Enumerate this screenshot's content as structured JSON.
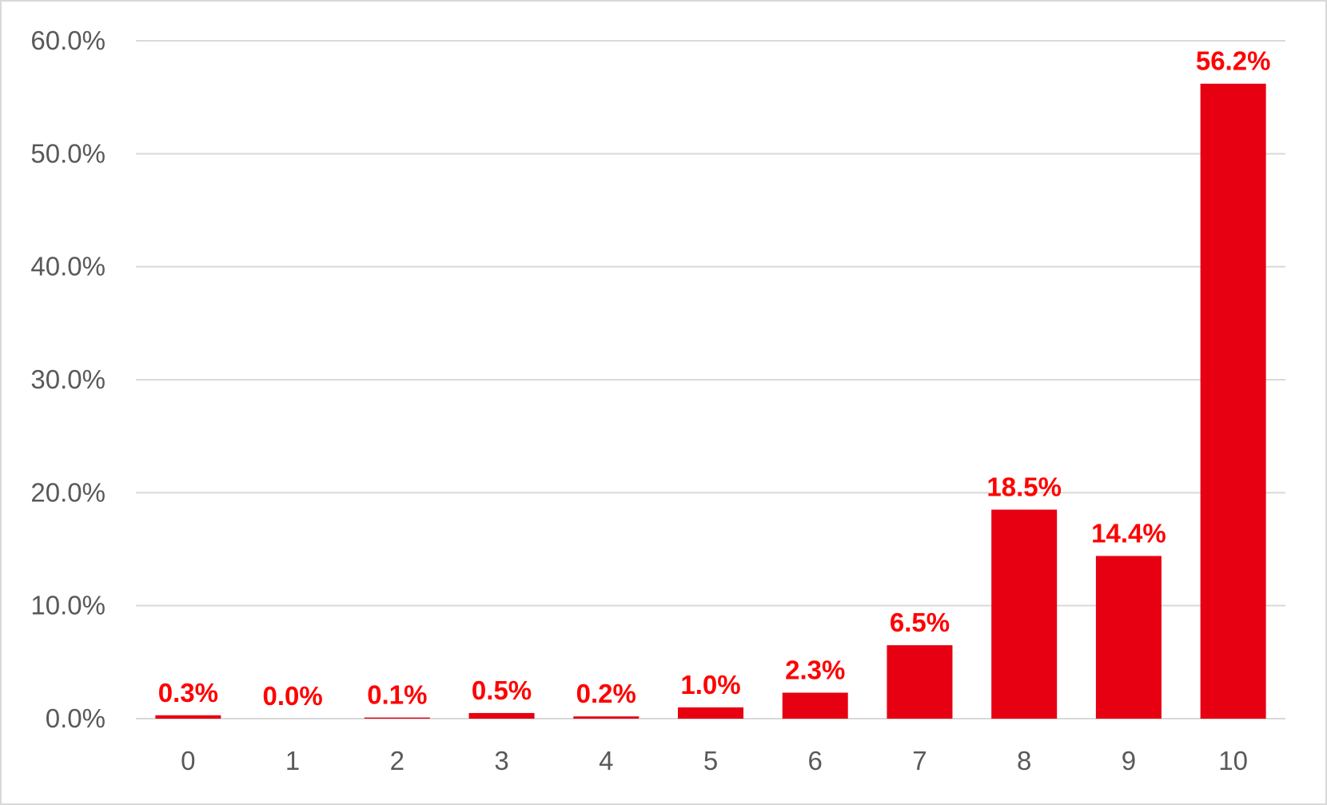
{
  "chart_data": {
    "type": "bar",
    "categories": [
      "0",
      "1",
      "2",
      "3",
      "4",
      "5",
      "6",
      "7",
      "8",
      "9",
      "10"
    ],
    "values": [
      0.3,
      0.0,
      0.1,
      0.5,
      0.2,
      1.0,
      2.3,
      6.5,
      18.5,
      14.4,
      56.2
    ],
    "data_labels": [
      "0.3%",
      "0.0%",
      "0.1%",
      "0.5%",
      "0.2%",
      "1.0%",
      "2.3%",
      "6.5%",
      "18.5%",
      "14.4%",
      "56.2%"
    ],
    "y_ticks": [
      "0.0%",
      "10.0%",
      "20.0%",
      "30.0%",
      "40.0%",
      "50.0%",
      "60.0%"
    ],
    "ylim": [
      0,
      60
    ],
    "title": "",
    "xlabel": "",
    "ylabel": "",
    "grid": true,
    "legend": "none",
    "colors": {
      "bar": "#e60012",
      "data_label": "#ff0000",
      "grid": "#d9d9d9",
      "tick_text": "#595959"
    }
  }
}
